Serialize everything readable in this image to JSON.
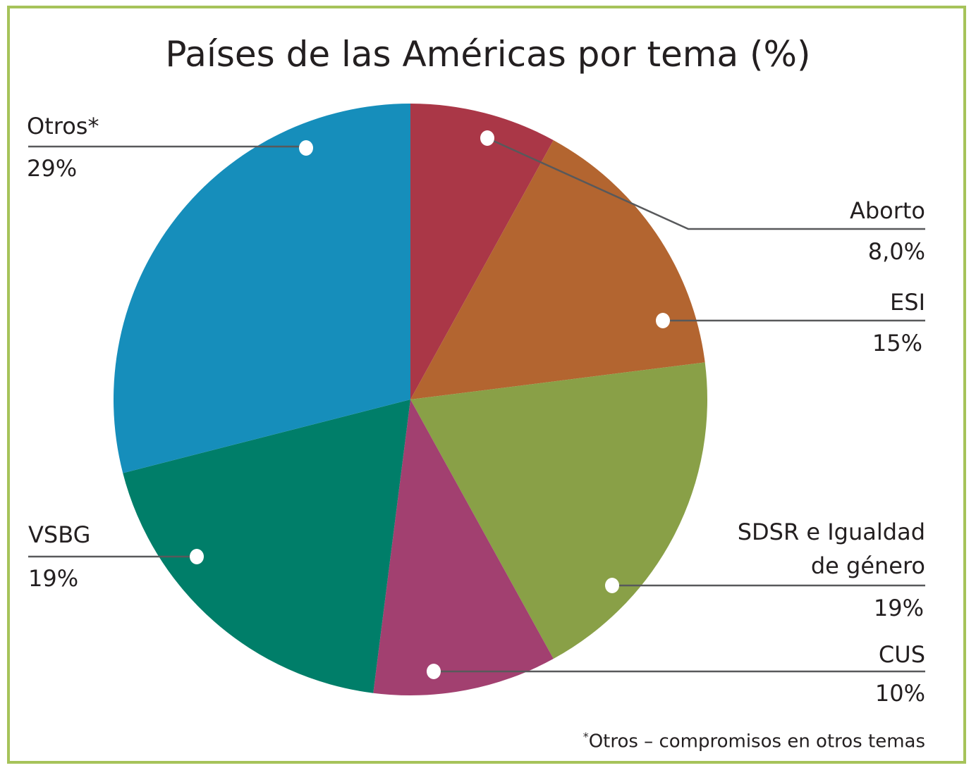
{
  "chart_data": {
    "type": "pie",
    "title": "Países de las Américas por tema (%)",
    "slices": [
      {
        "label": "Aborto",
        "value": 8.0,
        "display": "8,0%",
        "color": "#aa3747"
      },
      {
        "label": "ESI",
        "value": 15,
        "display": "15%",
        "color": "#b36530"
      },
      {
        "label": "SDSR e Igualdad de género",
        "value": 19,
        "display": "19%",
        "color": "#89a047"
      },
      {
        "label": "CUS",
        "value": 10,
        "display": "10%",
        "color": "#a24070"
      },
      {
        "label": "VSBG",
        "value": 19,
        "display": "19%",
        "color": "#007e69"
      },
      {
        "label": "Otros*",
        "value": 29,
        "display": "29%",
        "color": "#168ebb"
      }
    ],
    "start_angle": "top (12 o'clock), clockwise",
    "legend": "leader-line labels",
    "footnote": "*Otros – compromisos en otros temas"
  },
  "labels": {
    "otros": "Otros*",
    "otros_pct": "29%",
    "aborto": "Aborto",
    "aborto_pct": "8,0%",
    "esi": "ESI",
    "esi_pct": "15%",
    "sdsr_1": "SDSR e Igualdad",
    "sdsr_2": "de género",
    "sdsr_pct": "19%",
    "cus": "CUS",
    "cus_pct": "10%",
    "vsbg": "VSBG",
    "vsbg_pct": "19%",
    "footnote_mark": "*",
    "footnote_text": "Otros – compromisos en otros temas"
  },
  "colors": {
    "frame": "#a6c35a",
    "leader": "#58595b"
  }
}
